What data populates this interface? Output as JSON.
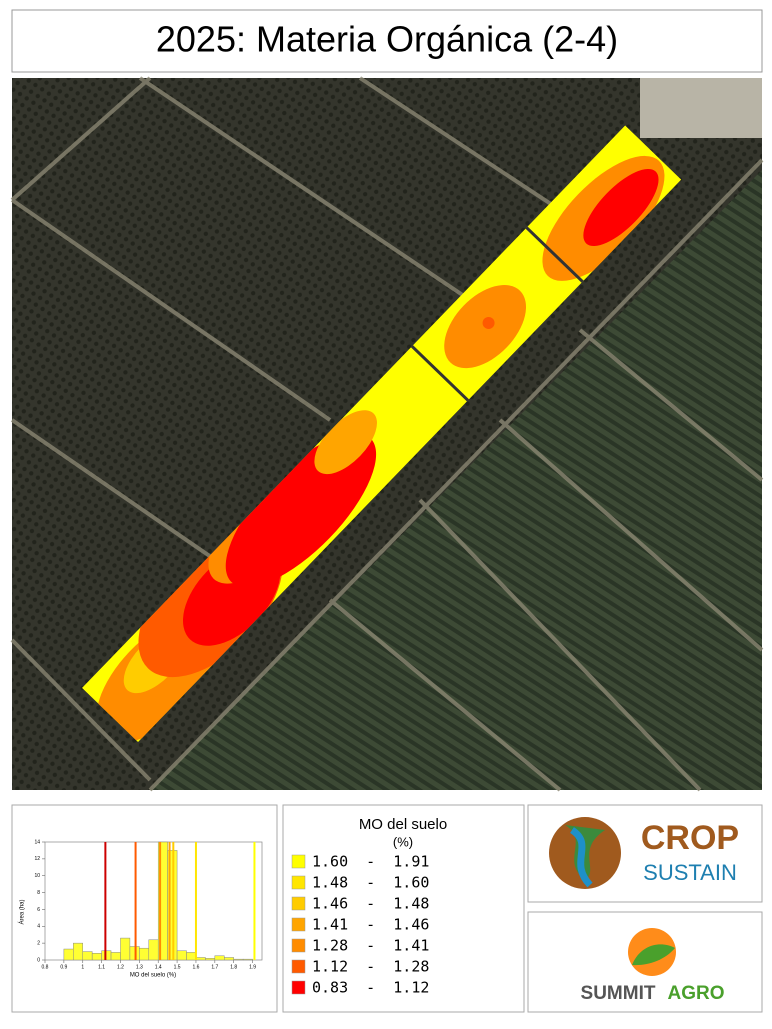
{
  "header": {
    "title": "2025: Materia Orgánica (2-4)"
  },
  "legend": {
    "title": "MO del suelo",
    "unit": "(%)",
    "entries": [
      {
        "label": "1.60  -  1.91",
        "color": "#ffff00"
      },
      {
        "label": "1.48  -  1.60",
        "color": "#ffe600"
      },
      {
        "label": "1.46  -  1.48",
        "color": "#ffcc00"
      },
      {
        "label": "1.41  -  1.46",
        "color": "#ffa500"
      },
      {
        "label": "1.28  -  1.41",
        "color": "#ff8c00"
      },
      {
        "label": "1.12  -  1.28",
        "color": "#ff5a00"
      },
      {
        "label": "0.83  -  1.12",
        "color": "#ff0000"
      }
    ]
  },
  "chart_data": {
    "type": "histogram",
    "ylabel": "Área (ha)",
    "xlabel": "MO del suelo (%)",
    "color": "#ffff33",
    "bins": [
      0.85,
      0.9,
      0.95,
      1.0,
      1.05,
      1.1,
      1.15,
      1.2,
      1.25,
      1.3,
      1.35,
      1.4,
      1.45,
      1.5,
      1.55,
      1.6,
      1.65,
      1.7,
      1.75,
      1.8,
      1.85,
      1.9
    ],
    "values": [
      0,
      1.3,
      2.0,
      1.0,
      0.8,
      1.1,
      0.9,
      2.6,
      1.6,
      1.4,
      2.4,
      14,
      13,
      1.1,
      0.9,
      0.3,
      0.2,
      0.5,
      0.3,
      0.1,
      0.1
    ],
    "thresholds": [
      {
        "value": 1.12,
        "color": "#cc0000"
      },
      {
        "value": 1.28,
        "color": "#ff5a00"
      },
      {
        "value": 1.41,
        "color": "#ff8c00"
      },
      {
        "value": 1.46,
        "color": "#ffa500"
      },
      {
        "value": 1.48,
        "color": "#ffcc00"
      },
      {
        "value": 1.6,
        "color": "#ffe600"
      },
      {
        "value": 1.91,
        "color": "#ffff00"
      }
    ],
    "xlim": [
      0.8,
      1.95
    ],
    "xticks": [
      0.8,
      0.9,
      1,
      1.1,
      1.2,
      1.3,
      1.4,
      1.5,
      1.6,
      1.7,
      1.8,
      1.9
    ],
    "ylim": [
      0,
      14
    ],
    "yticks": [
      0,
      2,
      4,
      6,
      8,
      10,
      12,
      14
    ]
  },
  "logos": {
    "crop": "CROP",
    "sustain": "SUSTAIN",
    "summit": "SUMMIT",
    "agro": "AGRO"
  }
}
